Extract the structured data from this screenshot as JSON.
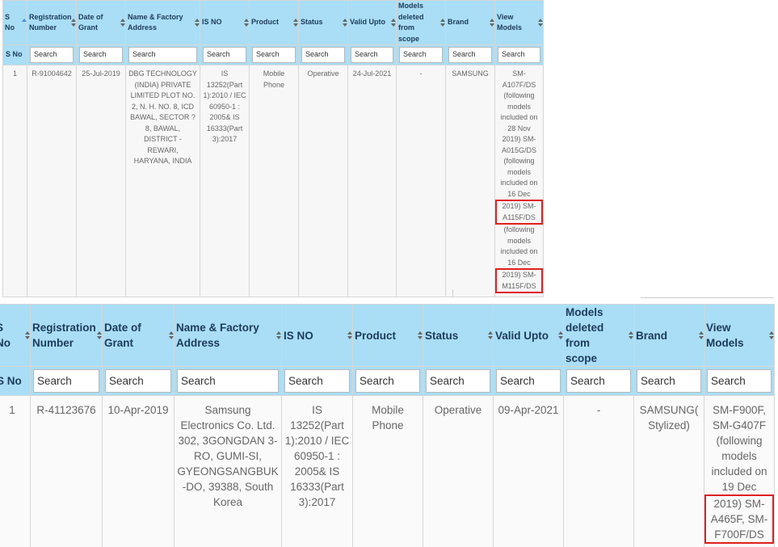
{
  "tables": [
    {
      "headers": [
        "S No",
        "Registration Number",
        "Date of Grant",
        "Name & Factory Address",
        "IS NO",
        "Product",
        "Status",
        "Valid Upto",
        "Models deleted from scope",
        "Brand",
        "View Models"
      ],
      "filters": [
        "S No",
        "Search",
        "Search",
        "Search",
        "Search",
        "Search",
        "Search",
        "Search",
        "Search",
        "Search",
        "Search"
      ],
      "rows": [
        [
          "1",
          "R-91004642",
          "25-Jul-2019",
          "DBG TECHNOLOGY (INDIA) PRIVATE LIMITED PLOT NO. 2, N. H. NO. 8, ICD BAWAL, SECTOR ? 8, BAWAL, DISTRICT - REWARI, HARYANA, INDIA",
          "IS 13252(Part 1):2010 / IEC 60950-1 : 2005& IS 16333(Part 3):2017",
          "Mobile Phone",
          "Operative",
          "24-Jul-2021",
          "-",
          "SAMSUNG",
          [
            {
              "text": "SM-A107F/DS (following models included on 28 Nov 2019) SM-A015G/DS (following models included on 16 Dec",
              "highlight": false
            },
            {
              "text": "2019) SM-A115F/DS",
              "highlight": true
            },
            {
              "text": "(following models included on 16 Dec",
              "highlight": false
            },
            {
              "text": "2019) SM-M115F/DS",
              "highlight": true
            }
          ]
        ]
      ]
    },
    {
      "headers": [
        "S No",
        "Registration Number",
        "Date of Grant",
        "Name & Factory Address",
        "IS NO",
        "Product",
        "Status",
        "Valid Upto",
        "Models deleted from scope",
        "Brand",
        "View Models"
      ],
      "filters": [
        "S No",
        "Search",
        "Search",
        "Search",
        "Search",
        "Search",
        "Search",
        "Search",
        "Search",
        "Search",
        "Search"
      ],
      "rows": [
        [
          "1",
          "R-41123676",
          "10-Apr-2019",
          "Samsung Electronics Co. Ltd. 302, 3GONGDAN 3-RO, GUMI-SI, GYEONGSANGBUK-DO, 39388, South Korea",
          "IS 13252(Part 1):2010 / IEC 60950-1 : 2005& IS 16333(Part 3):2017",
          "Mobile Phone",
          "Operative",
          "09-Apr-2021",
          "-",
          "SAMSUNG( Stylized)",
          [
            {
              "text": "SM-F900F, SM-G407F (following models included on 19 Dec",
              "highlight": false
            },
            {
              "text": "2019) SM-A465F, SM-F700F/DS",
              "highlight": true
            }
          ]
        ]
      ]
    }
  ]
}
